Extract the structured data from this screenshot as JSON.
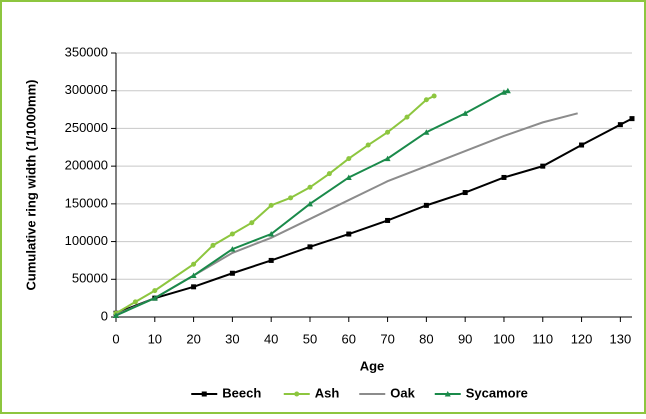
{
  "chart_data": {
    "type": "line",
    "x_label": "Age",
    "y_label": "Cumulative ring width (1/1000mm)",
    "xlim": [
      0,
      133
    ],
    "xticks": [
      0,
      10,
      20,
      30,
      40,
      50,
      60,
      70,
      80,
      90,
      100,
      110,
      120,
      130
    ],
    "ylim": [
      0,
      350000
    ],
    "yticks": [
      0,
      50000,
      100000,
      150000,
      200000,
      250000,
      300000,
      350000
    ],
    "grid": true,
    "legend": "bottom",
    "series": [
      {
        "name": "Beech",
        "color": "#000000",
        "marker": "square",
        "x": [
          0,
          10,
          20,
          30,
          40,
          50,
          60,
          70,
          80,
          90,
          100,
          110,
          120,
          130,
          133
        ],
        "values": [
          5000,
          25000,
          40000,
          58000,
          75000,
          93000,
          110000,
          128000,
          148000,
          165000,
          185000,
          200000,
          228000,
          255000,
          263000
        ]
      },
      {
        "name": "Ash",
        "color": "#8dc63f",
        "marker": "circle",
        "x": [
          0,
          5,
          10,
          20,
          25,
          30,
          35,
          40,
          45,
          50,
          55,
          60,
          65,
          70,
          75,
          80,
          82
        ],
        "values": [
          5000,
          20000,
          35000,
          70000,
          95000,
          110000,
          125000,
          148000,
          158000,
          172000,
          190000,
          210000,
          228000,
          245000,
          265000,
          288000,
          293000
        ]
      },
      {
        "name": "Oak",
        "color": "#8c8c8c",
        "marker": "none",
        "x": [
          0,
          10,
          20,
          30,
          40,
          50,
          60,
          70,
          80,
          90,
          100,
          110,
          119
        ],
        "values": [
          3000,
          25000,
          55000,
          85000,
          105000,
          130000,
          155000,
          180000,
          200000,
          220000,
          240000,
          258000,
          270000
        ]
      },
      {
        "name": "Sycamore",
        "color": "#1a8a4a",
        "marker": "triangle",
        "x": [
          0,
          10,
          20,
          30,
          40,
          50,
          60,
          70,
          80,
          90,
          100,
          101
        ],
        "values": [
          2000,
          25000,
          55000,
          90000,
          110000,
          150000,
          185000,
          210000,
          245000,
          270000,
          298000,
          300000
        ]
      }
    ]
  }
}
